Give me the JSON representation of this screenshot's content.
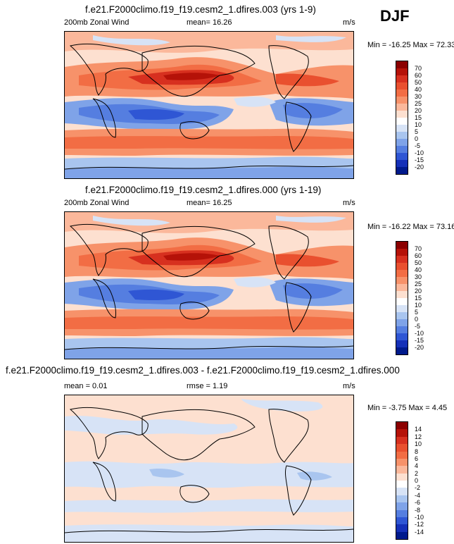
{
  "season": "DJF",
  "panels": [
    {
      "title": "f.e21.F2000climo.f19_f19.cesm2_1.dfires.003 (yrs 1-9)",
      "left_label": "200mb Zonal Wind",
      "center_label": "mean=  16.26",
      "units": "m/s",
      "minmax": "Min = -16.25 Max =  72.33"
    },
    {
      "title": "f.e21.F2000climo.f19_f19.cesm2_1.dfires.000 (yrs 1-19)",
      "left_label": "200mb Zonal Wind",
      "center_label": "mean=  16.25",
      "units": "m/s",
      "minmax": "Min = -16.22 Max =  73.16"
    },
    {
      "title": "f.e21.F2000climo.f19_f19.cesm2_1.dfires.003 - f.e21.F2000climo.f19_f19.cesm2_1.dfires.000",
      "left_label": "mean =   0.01",
      "center_label": "rmse =   1.19",
      "units": "m/s",
      "minmax": "Min =  -3.75 Max =   4.45"
    }
  ],
  "colorbars": {
    "wind": {
      "labels": [
        "70",
        "60",
        "50",
        "40",
        "30",
        "25",
        "20",
        "15",
        "10",
        "5",
        "0",
        "-5",
        "-10",
        "-15",
        "-20"
      ],
      "colors": [
        "#8b0000",
        "#b51208",
        "#d7301f",
        "#e9502f",
        "#f26d44",
        "#f7926a",
        "#fbb89b",
        "#fde0d0",
        "#ffffff",
        "#d7e3f6",
        "#a9c5ef",
        "#7fa3e8",
        "#557ee0",
        "#2f56d4",
        "#1530b8",
        "#001a8c"
      ]
    },
    "diff": {
      "labels": [
        "14",
        "12",
        "10",
        "8",
        "6",
        "4",
        "2",
        "0",
        "-2",
        "-4",
        "-6",
        "-8",
        "-10",
        "-12",
        "-14"
      ],
      "colors": [
        "#8b0000",
        "#b51208",
        "#d7301f",
        "#e9502f",
        "#f26d44",
        "#f7926a",
        "#fbb89b",
        "#fde0d0",
        "#ffffff",
        "#d7e3f6",
        "#a9c5ef",
        "#7fa3e8",
        "#557ee0",
        "#2f56d4",
        "#1530b8",
        "#001a8c"
      ]
    }
  }
}
